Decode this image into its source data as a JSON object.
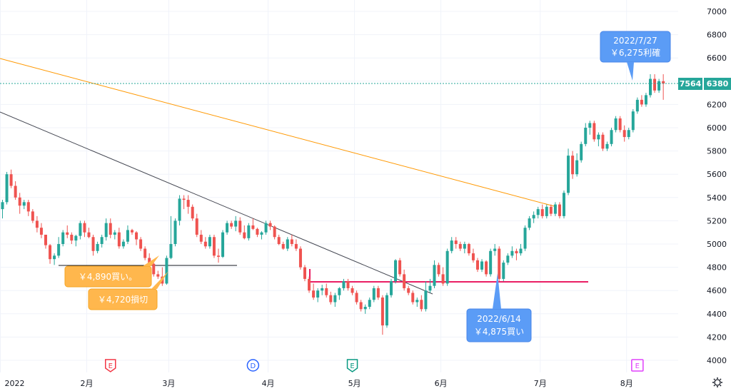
{
  "chart_data": {
    "type": "candlestick",
    "ylim": [
      3880,
      7080
    ],
    "y_ticks": [
      4000,
      4200,
      4400,
      4600,
      4800,
      5000,
      5200,
      5400,
      5600,
      5800,
      6000,
      6200,
      6400,
      6600,
      6800,
      7000
    ],
    "x_ticks": [
      {
        "label": "2022",
        "bar": -0.5
      },
      {
        "label": "2月",
        "bar": 19.5
      },
      {
        "label": "3月",
        "bar": 38.5
      },
      {
        "label": "4月",
        "bar": 61.5
      },
      {
        "label": "5月",
        "bar": 81.5
      },
      {
        "label": "6月",
        "bar": 101.5
      },
      {
        "label": "7月",
        "bar": 124.5
      },
      {
        "label": "8月",
        "bar": 144.5
      }
    ],
    "colors": {
      "up": "#26a69a",
      "down": "#ef5350",
      "grid": "#f0f3fa",
      "axis_text": "#131722",
      "orange_line": "#ff9800",
      "trend_line": "#434651",
      "support_line": "#e91e63",
      "last_price": "#26a69a"
    },
    "candles": [
      [
        5300,
        5380,
        5220,
        5360
      ],
      [
        5360,
        5620,
        5340,
        5600
      ],
      [
        5600,
        5640,
        5480,
        5500
      ],
      [
        5500,
        5540,
        5380,
        5400
      ],
      [
        5400,
        5440,
        5260,
        5330
      ],
      [
        5330,
        5380,
        5300,
        5360
      ],
      [
        5360,
        5380,
        5240,
        5280
      ],
      [
        5280,
        5300,
        5180,
        5200
      ],
      [
        5200,
        5240,
        5100,
        5140
      ],
      [
        5140,
        5180,
        5050,
        5080
      ],
      [
        5080,
        5080,
        4960,
        4990
      ],
      [
        4990,
        5000,
        4830,
        4870
      ],
      [
        4870,
        4920,
        4820,
        4900
      ],
      [
        4900,
        5060,
        4880,
        5000
      ],
      [
        5000,
        5120,
        4980,
        5100
      ],
      [
        5100,
        5160,
        5050,
        5080
      ],
      [
        5080,
        5100,
        5000,
        5030
      ],
      [
        5030,
        5080,
        4980,
        5070
      ],
      [
        5070,
        5200,
        5040,
        5180
      ],
      [
        5180,
        5200,
        5060,
        5100
      ],
      [
        5100,
        5140,
        5050,
        5060
      ],
      [
        5060,
        5080,
        4900,
        4940
      ],
      [
        4940,
        5020,
        4920,
        5000
      ],
      [
        5000,
        5080,
        4970,
        5060
      ],
      [
        5060,
        5220,
        5030,
        5180
      ],
      [
        5180,
        5220,
        5050,
        5080
      ],
      [
        5080,
        5120,
        5040,
        5100
      ],
      [
        5100,
        5140,
        4960,
        4980
      ],
      [
        4980,
        5040,
        4960,
        5020
      ],
      [
        5020,
        5160,
        5000,
        5120
      ],
      [
        5120,
        5130,
        5080,
        5100
      ],
      [
        5100,
        5110,
        4990,
        5040
      ],
      [
        5040,
        5060,
        4940,
        4960
      ],
      [
        4960,
        4980,
        4860,
        4880
      ],
      [
        4880,
        4920,
        4810,
        4830
      ],
      [
        4830,
        4850,
        4720,
        4740
      ],
      [
        4740,
        4770,
        4700,
        4720
      ],
      [
        4720,
        4800,
        4640,
        4660
      ],
      [
        4660,
        4900,
        4650,
        4880
      ],
      [
        4880,
        5240,
        4870,
        5000
      ],
      [
        5000,
        5220,
        4980,
        5200
      ],
      [
        5200,
        5420,
        5160,
        5390
      ],
      [
        5390,
        5420,
        5300,
        5380
      ],
      [
        5380,
        5420,
        5260,
        5320
      ],
      [
        5320,
        5340,
        5200,
        5220
      ],
      [
        5220,
        5260,
        5060,
        5080
      ],
      [
        5080,
        5120,
        5000,
        5020
      ],
      [
        5020,
        5060,
        4960,
        4980
      ],
      [
        4980,
        5080,
        4960,
        5060
      ],
      [
        5060,
        5080,
        4880,
        4900
      ],
      [
        4900,
        4960,
        4840,
        4890
      ],
      [
        4890,
        5120,
        4880,
        5100
      ],
      [
        5100,
        5200,
        5080,
        5180
      ],
      [
        5180,
        5200,
        5130,
        5150
      ],
      [
        5150,
        5240,
        5110,
        5200
      ],
      [
        5200,
        5230,
        5080,
        5100
      ],
      [
        5100,
        5160,
        5040,
        5050
      ],
      [
        5050,
        5180,
        5030,
        5160
      ],
      [
        5160,
        5220,
        5120,
        5130
      ],
      [
        5130,
        5140,
        5060,
        5080
      ],
      [
        5080,
        5110,
        5040,
        5100
      ],
      [
        5100,
        5200,
        5080,
        5180
      ],
      [
        5180,
        5200,
        5120,
        5150
      ],
      [
        5150,
        5160,
        5040,
        5060
      ],
      [
        5060,
        5080,
        4990,
        5000
      ],
      [
        5000,
        5020,
        4950,
        4960
      ],
      [
        4960,
        5060,
        4940,
        5040
      ],
      [
        5040,
        5080,
        4980,
        5000
      ],
      [
        5000,
        5040,
        4940,
        4960
      ],
      [
        4960,
        4980,
        4780,
        4800
      ],
      [
        4800,
        4820,
        4680,
        4700
      ],
      [
        4700,
        4720,
        4580,
        4600
      ],
      [
        4600,
        4660,
        4520,
        4540
      ],
      [
        4540,
        4620,
        4500,
        4600
      ],
      [
        4600,
        4650,
        4560,
        4620
      ],
      [
        4620,
        4660,
        4540,
        4560
      ],
      [
        4560,
        4590,
        4480,
        4500
      ],
      [
        4500,
        4580,
        4460,
        4560
      ],
      [
        4560,
        4630,
        4520,
        4620
      ],
      [
        4620,
        4700,
        4600,
        4680
      ],
      [
        4680,
        4700,
        4600,
        4620
      ],
      [
        4620,
        4640,
        4560,
        4580
      ],
      [
        4580,
        4600,
        4480,
        4500
      ],
      [
        4500,
        4520,
        4420,
        4440
      ],
      [
        4440,
        4480,
        4400,
        4460
      ],
      [
        4460,
        4540,
        4440,
        4520
      ],
      [
        4520,
        4640,
        4500,
        4620
      ],
      [
        4620,
        4640,
        4520,
        4540
      ],
      [
        4540,
        4560,
        4220,
        4300
      ],
      [
        4300,
        4580,
        4280,
        4560
      ],
      [
        4560,
        4700,
        4540,
        4680
      ],
      [
        4680,
        4870,
        4660,
        4860
      ],
      [
        4860,
        4880,
        4720,
        4740
      ],
      [
        4740,
        4780,
        4600,
        4620
      ],
      [
        4620,
        4640,
        4560,
        4580
      ],
      [
        4580,
        4600,
        4480,
        4500
      ],
      [
        4500,
        4540,
        4460,
        4520
      ],
      [
        4520,
        4560,
        4420,
        4440
      ],
      [
        4440,
        4680,
        4420,
        4600
      ],
      [
        4600,
        4700,
        4580,
        4640
      ],
      [
        4640,
        4860,
        4620,
        4820
      ],
      [
        4820,
        4840,
        4720,
        4740
      ],
      [
        4740,
        4800,
        4640,
        4660
      ],
      [
        4660,
        4960,
        4640,
        4940
      ],
      [
        4940,
        5060,
        4920,
        5030
      ],
      [
        5030,
        5060,
        4960,
        5000
      ],
      [
        5000,
        5020,
        4940,
        4960
      ],
      [
        4960,
        5020,
        4920,
        5000
      ],
      [
        5000,
        5010,
        4900,
        4920
      ],
      [
        4920,
        4960,
        4840,
        4860
      ],
      [
        4860,
        4880,
        4760,
        4780
      ],
      [
        4780,
        4870,
        4760,
        4850
      ],
      [
        4850,
        4860,
        4720,
        4740
      ],
      [
        4740,
        4960,
        4720,
        4940
      ],
      [
        4940,
        5000,
        4900,
        4960
      ],
      [
        4960,
        4980,
        4680,
        4700
      ],
      [
        4700,
        4860,
        4680,
        4840
      ],
      [
        4840,
        4920,
        4820,
        4900
      ],
      [
        4900,
        4980,
        4880,
        4940
      ],
      [
        4940,
        4960,
        4860,
        4920
      ],
      [
        4920,
        5000,
        4900,
        4960
      ],
      [
        4960,
        5160,
        4940,
        5140
      ],
      [
        5140,
        5240,
        5120,
        5220
      ],
      [
        5220,
        5280,
        5180,
        5250
      ],
      [
        5250,
        5320,
        5220,
        5300
      ],
      [
        5300,
        5340,
        5220,
        5240
      ],
      [
        5240,
        5340,
        5220,
        5320
      ],
      [
        5320,
        5340,
        5240,
        5260
      ],
      [
        5260,
        5360,
        5240,
        5340
      ],
      [
        5340,
        5360,
        5220,
        5240
      ],
      [
        5240,
        5460,
        5220,
        5440
      ],
      [
        5440,
        5820,
        5420,
        5760
      ],
      [
        5760,
        5800,
        5560,
        5600
      ],
      [
        5600,
        5780,
        5580,
        5720
      ],
      [
        5720,
        5880,
        5700,
        5860
      ],
      [
        5860,
        6040,
        5840,
        6000
      ],
      [
        6000,
        6060,
        5940,
        6040
      ],
      [
        6040,
        6060,
        5880,
        5900
      ],
      [
        5900,
        5960,
        5840,
        5940
      ],
      [
        5940,
        5960,
        5800,
        5820
      ],
      [
        5820,
        5880,
        5800,
        5860
      ],
      [
        5860,
        6000,
        5840,
        5980
      ],
      [
        5980,
        6100,
        5960,
        6080
      ],
      [
        6080,
        6100,
        5960,
        5980
      ],
      [
        5980,
        6020,
        5880,
        5920
      ],
      [
        5920,
        6000,
        5900,
        5980
      ],
      [
        5980,
        6160,
        5960,
        6140
      ],
      [
        6140,
        6260,
        6120,
        6240
      ],
      [
        6240,
        6280,
        6180,
        6200
      ],
      [
        6200,
        6300,
        6180,
        6280
      ],
      [
        6280,
        6460,
        6260,
        6420
      ],
      [
        6420,
        6460,
        6300,
        6320
      ],
      [
        6320,
        6420,
        6300,
        6400
      ],
      [
        6400,
        6460,
        6240,
        6380
      ]
    ],
    "last_price_badges": [
      "7564",
      "6380"
    ],
    "callouts": [
      {
        "date": "2022/7/27",
        "text": "￥6,275利確"
      },
      {
        "text": "￥4,890買い。"
      },
      {
        "text": "￥4,720損切"
      },
      {
        "date": "2022/6/14",
        "text": "￥4,875買い"
      }
    ],
    "event_markers": [
      {
        "letter": "E",
        "bar": 25,
        "color": "#f23645"
      },
      {
        "letter": "D",
        "bar": 58,
        "color": "#2962ff"
      },
      {
        "letter": "E",
        "bar": 81,
        "color": "#089981"
      },
      {
        "letter": "E",
        "bar": 147,
        "color": "#e040fb"
      }
    ]
  },
  "ui": {
    "settings_icon": "gear-icon"
  }
}
